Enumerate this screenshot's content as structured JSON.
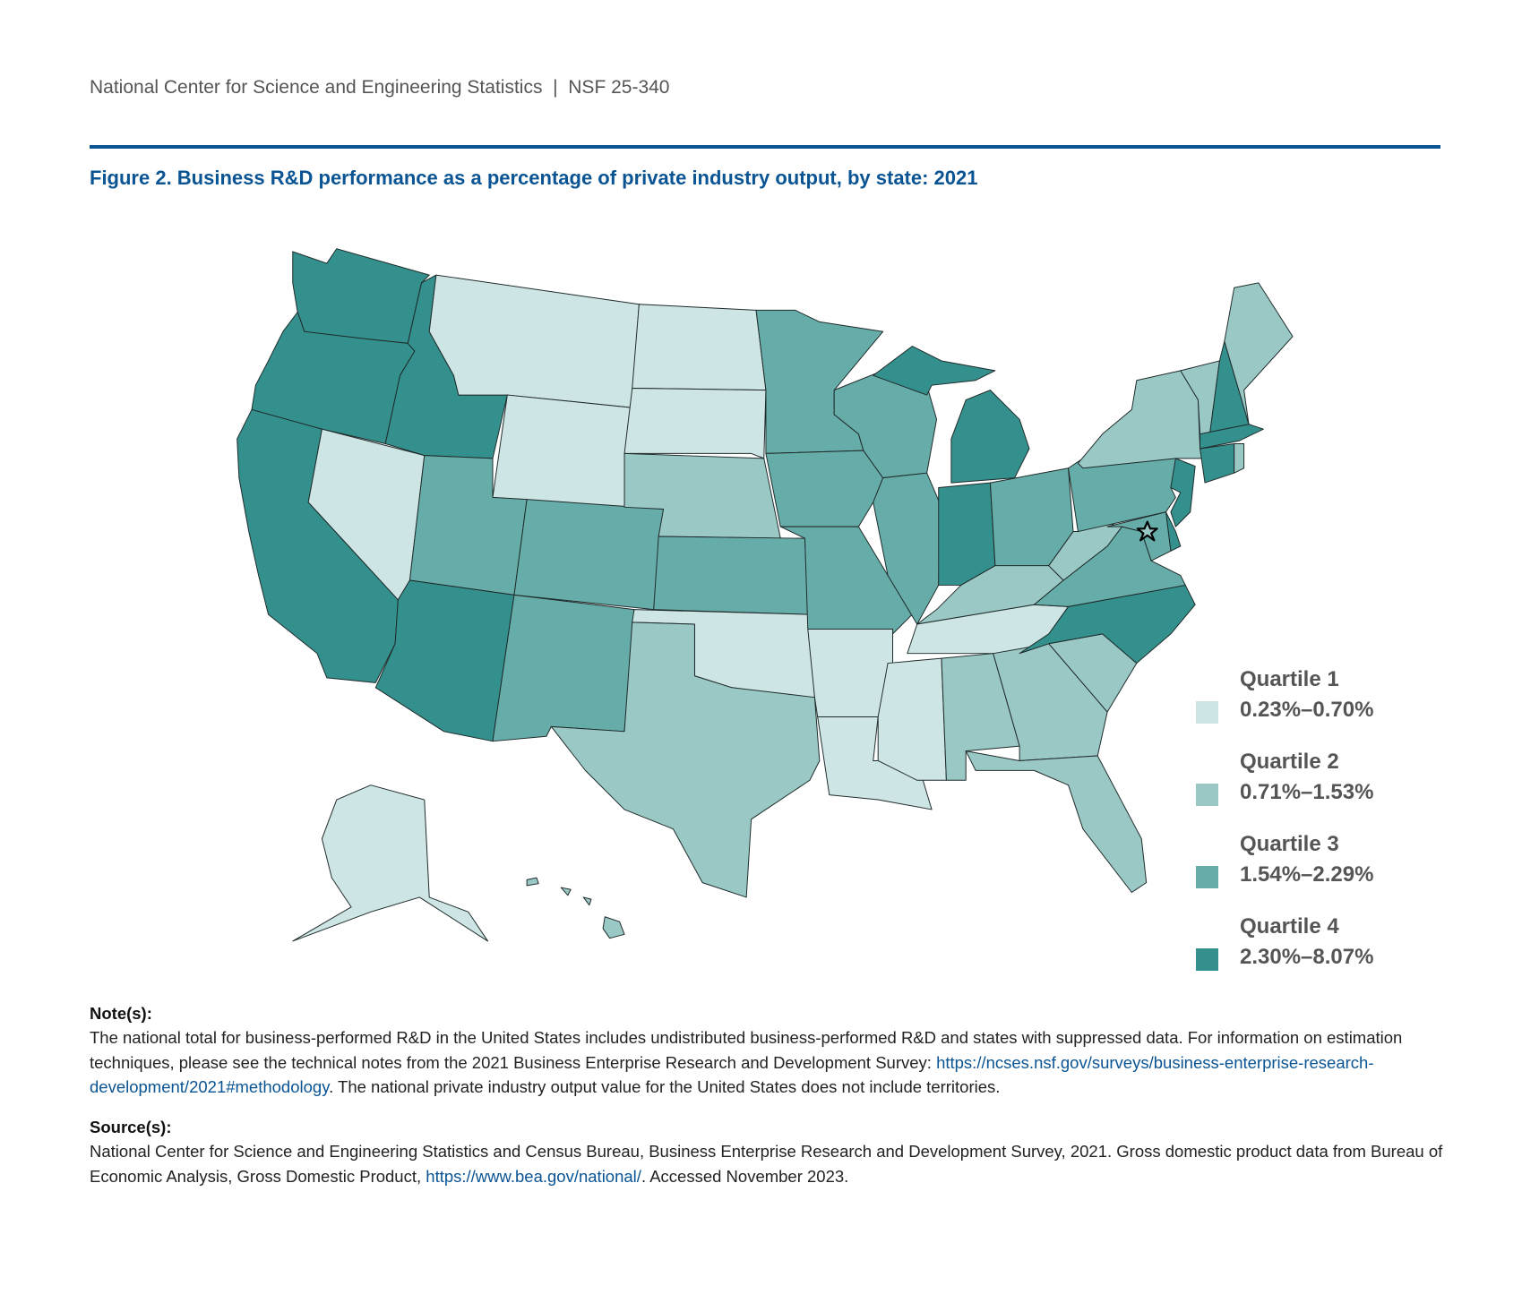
{
  "header": {
    "org": "National Center for Science and Engineering Statistics",
    "separator": "|",
    "report_id": "NSF 25-340"
  },
  "figure": {
    "title": "Figure 2. Business R&D performance as a percentage of private industry output, by state: 2021"
  },
  "colors": {
    "rule": "#0a5494",
    "q1": "#cde5e4",
    "q2": "#99c8c5",
    "q3": "#66aca8",
    "q4": "#33908c"
  },
  "legend": [
    {
      "label": "Quartile 1",
      "range": "0.23%–0.70%",
      "color": "#cde5e4"
    },
    {
      "label": "Quartile 2",
      "range": "0.71%–1.53%",
      "color": "#99c8c5"
    },
    {
      "label": "Quartile 3",
      "range": "1.54%–2.29%",
      "color": "#66aca8"
    },
    {
      "label": "Quartile 4",
      "range": "2.30%–8.07%",
      "color": "#33908c"
    }
  ],
  "chart_data": {
    "type": "choropleth",
    "title": "Business R&D performance as a percentage of private industry output, by state: 2021",
    "quartiles": {
      "1": [
        "MT",
        "ND",
        "SD",
        "WY",
        "NV",
        "OK",
        "AR",
        "LA",
        "MS",
        "TN",
        "AK"
      ],
      "2": [
        "NE",
        "TX",
        "KY",
        "WV",
        "AL",
        "GA",
        "SC",
        "FL",
        "ME",
        "VT",
        "NY",
        "RI",
        "HI",
        "DC"
      ],
      "3": [
        "UT",
        "CO",
        "NM",
        "KS",
        "MN",
        "IA",
        "MO",
        "WI",
        "IL",
        "OH",
        "PA",
        "VA",
        "MD"
      ],
      "4": [
        "WA",
        "OR",
        "CA",
        "ID",
        "AZ",
        "MI",
        "IN",
        "NH",
        "MA",
        "CT",
        "NJ",
        "DE",
        "NC"
      ]
    },
    "legend_placement": "bottom-right"
  },
  "notes": {
    "heading": "Note(s):",
    "text1": "The national total for business-performed R&D in the United States includes undistributed business-performed R&D and states with suppressed data. For information on estimation techniques, please see the technical notes from the 2021 Business Enterprise Research and Development Survey: ",
    "link": "https://ncses.nsf.gov/surveys/business-enterprise-research-development/2021#methodology",
    "text2": ". The national private industry output value for the United States does not include territories."
  },
  "sources": {
    "heading": "Source(s):",
    "text1": "National Center for Science and Engineering Statistics and Census Bureau, Business Enterprise Research and Development Survey, 2021. Gross domestic product data from Bureau of Economic Analysis, Gross Domestic Product, ",
    "link": "https://www.bea.gov/national/",
    "text2": ". Accessed November 2023."
  }
}
